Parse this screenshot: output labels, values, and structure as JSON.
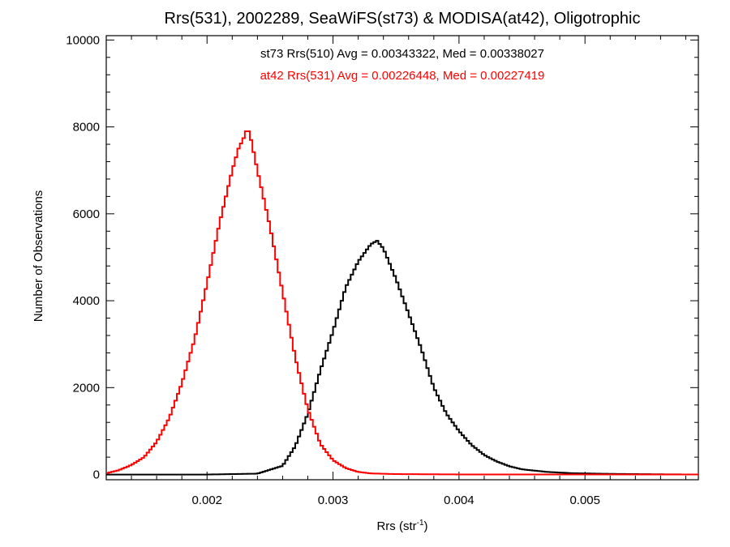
{
  "chart_data": {
    "type": "line",
    "title": "Rrs(531), 2002289, SeaWiFS(st73) & MODISA(at42), Oligotrophic",
    "xlabel_main": "Rrs (str",
    "xlabel_sup": "-1",
    "xlabel_close": ")",
    "ylabel": "Number of Observations",
    "xlim": [
      0.0012,
      0.0059
    ],
    "ylim": [
      -120,
      10100
    ],
    "x_ticks": [
      0.002,
      0.003,
      0.004,
      0.005
    ],
    "x_tick_labels": [
      "0.002",
      "0.003",
      "0.004",
      "0.005"
    ],
    "y_ticks": [
      0,
      2000,
      4000,
      6000,
      8000,
      10000
    ],
    "y_tick_labels": [
      "0",
      "2000",
      "4000",
      "6000",
      "8000",
      "10000"
    ],
    "grid": false,
    "annotations": [
      {
        "text": "st73 Rrs(510) Avg = 0.00343322, Med = 0.00338027",
        "color": "#000000"
      },
      {
        "text": "at42 Rrs(531) Avg = 0.00226448, Med = 0.00227419",
        "color": "#ff0000"
      }
    ],
    "series": [
      {
        "color": "#000000",
        "x": [
          0.0012,
          0.002,
          0.0024,
          0.0026,
          0.0027,
          0.0028,
          0.0029,
          0.003,
          0.0031,
          0.0032,
          0.0033,
          0.00335,
          0.0034,
          0.0035,
          0.0036,
          0.0037,
          0.0038,
          0.0039,
          0.004,
          0.0041,
          0.0042,
          0.0043,
          0.0044,
          0.0045,
          0.0047,
          0.0049,
          0.0052,
          0.0056,
          0.0059
        ],
        "y": [
          0,
          0,
          20,
          200,
          650,
          1400,
          2400,
          3300,
          4300,
          4900,
          5300,
          5380,
          5200,
          4500,
          3700,
          2900,
          2000,
          1400,
          1000,
          680,
          450,
          300,
          190,
          120,
          60,
          30,
          15,
          5,
          0
        ]
      },
      {
        "color": "#ff0000",
        "x": [
          0.0012,
          0.0013,
          0.0014,
          0.0015,
          0.0016,
          0.0017,
          0.0018,
          0.0019,
          0.002,
          0.0021,
          0.0022,
          0.00225,
          0.0023,
          0.00232,
          0.00235,
          0.0024,
          0.0025,
          0.0026,
          0.0027,
          0.0028,
          0.0029,
          0.003,
          0.0031,
          0.0032,
          0.0033,
          0.0035,
          0.004,
          0.0059
        ],
        "y": [
          30,
          100,
          220,
          400,
          750,
          1300,
          2100,
          3100,
          4400,
          5800,
          7000,
          7500,
          7800,
          8000,
          7700,
          7000,
          5700,
          4200,
          2700,
          1500,
          700,
          330,
          150,
          60,
          25,
          10,
          2,
          0
        ]
      }
    ]
  }
}
